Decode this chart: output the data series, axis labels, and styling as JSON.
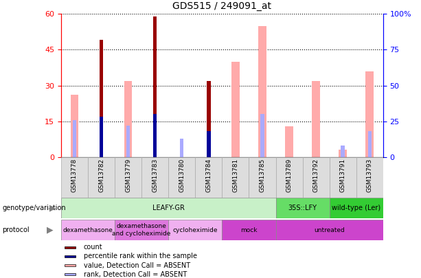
{
  "title": "GDS515 / 249091_at",
  "samples": [
    "GSM13778",
    "GSM13782",
    "GSM13779",
    "GSM13783",
    "GSM13780",
    "GSM13784",
    "GSM13781",
    "GSM13785",
    "GSM13789",
    "GSM13792",
    "GSM13791",
    "GSM13793"
  ],
  "count": [
    null,
    49,
    null,
    59,
    null,
    32,
    null,
    null,
    null,
    null,
    null,
    null
  ],
  "percentile_rank": [
    null,
    28,
    null,
    30,
    null,
    18,
    null,
    null,
    null,
    null,
    null,
    null
  ],
  "value_absent": [
    26,
    null,
    32,
    null,
    null,
    null,
    40,
    55,
    13,
    32,
    3,
    36
  ],
  "rank_absent": [
    26,
    null,
    22,
    null,
    13,
    18,
    null,
    30,
    null,
    null,
    8,
    18
  ],
  "ylim_left": [
    0,
    60
  ],
  "ylim_right": [
    0,
    100
  ],
  "yticks_left": [
    0,
    15,
    30,
    45,
    60
  ],
  "yticks_right": [
    0,
    25,
    50,
    75,
    100
  ],
  "yticklabels_right": [
    "0",
    "25",
    "50",
    "75",
    "100%"
  ],
  "genotype_groups": [
    {
      "label": "LEAFY-GR",
      "start": 0,
      "end": 8,
      "color": "#c8f0c8"
    },
    {
      "label": "35S::LFY",
      "start": 8,
      "end": 10,
      "color": "#66dd66"
    },
    {
      "label": "wild-type (Ler)",
      "start": 10,
      "end": 12,
      "color": "#33cc33"
    }
  ],
  "protocol_groups": [
    {
      "label": "dexamethasone",
      "start": 0,
      "end": 2,
      "color": "#f0b0f0"
    },
    {
      "label": "dexamethasone\nand cycloheximide",
      "start": 2,
      "end": 4,
      "color": "#dd77dd"
    },
    {
      "label": "cycloheximide",
      "start": 4,
      "end": 6,
      "color": "#f0b0f0"
    },
    {
      "label": "mock",
      "start": 6,
      "end": 8,
      "color": "#cc44cc"
    },
    {
      "label": "untreated",
      "start": 8,
      "end": 12,
      "color": "#cc44cc"
    }
  ],
  "color_count": "#990000",
  "color_rank": "#000099",
  "color_value_absent": "#ffaaaa",
  "color_rank_absent": "#aaaaff",
  "legend_items": [
    {
      "color": "#990000",
      "label": "count"
    },
    {
      "color": "#000099",
      "label": "percentile rank within the sample"
    },
    {
      "color": "#ffaaaa",
      "label": "value, Detection Call = ABSENT"
    },
    {
      "color": "#aaaaff",
      "label": "rank, Detection Call = ABSENT"
    }
  ]
}
